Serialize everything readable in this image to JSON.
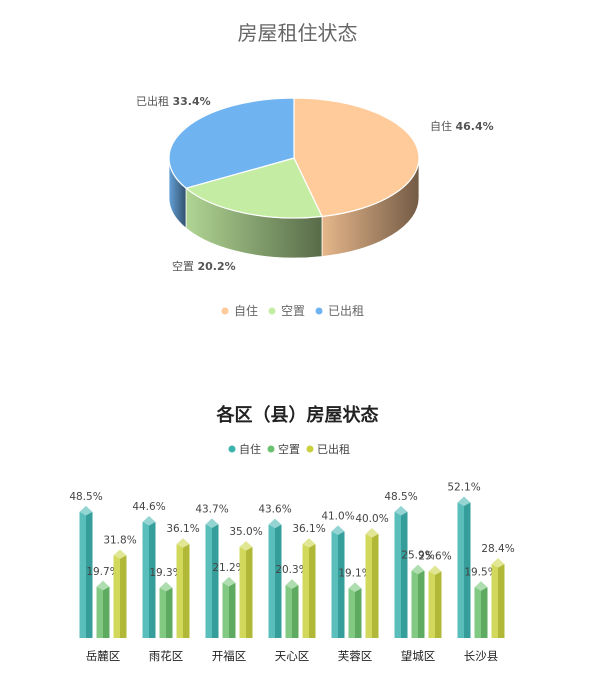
{
  "chart_data": [
    {
      "type": "pie",
      "title": "房屋租住状态",
      "categories": [
        "自住",
        "空置",
        "已出租"
      ],
      "values": [
        46.4,
        20.2,
        33.4
      ],
      "value_unit": "%",
      "colors": [
        "#FFCB9A",
        "#C4EDA3",
        "#6FB3F0"
      ],
      "legend_placement": "bottom"
    },
    {
      "type": "bar",
      "title": "各区（县）房屋状态",
      "categories": [
        "岳麓区",
        "雨花区",
        "开福区",
        "天心区",
        "芙蓉区",
        "望城区",
        "长沙县"
      ],
      "series": [
        {
          "name": "自住",
          "color": "#3DB3AF",
          "values": [
            48.5,
            44.6,
            43.7,
            43.6,
            41.0,
            48.5,
            52.1
          ]
        },
        {
          "name": "空置",
          "color": "#6CC16E",
          "values": [
            19.7,
            19.3,
            21.2,
            20.3,
            19.1,
            25.9,
            19.5
          ]
        },
        {
          "name": "已出租",
          "color": "#C9D13E",
          "values": [
            31.8,
            36.1,
            35.0,
            36.1,
            40.0,
            25.6,
            28.4
          ]
        }
      ],
      "value_unit": "%",
      "legend_placement": "top",
      "grid": false
    }
  ]
}
